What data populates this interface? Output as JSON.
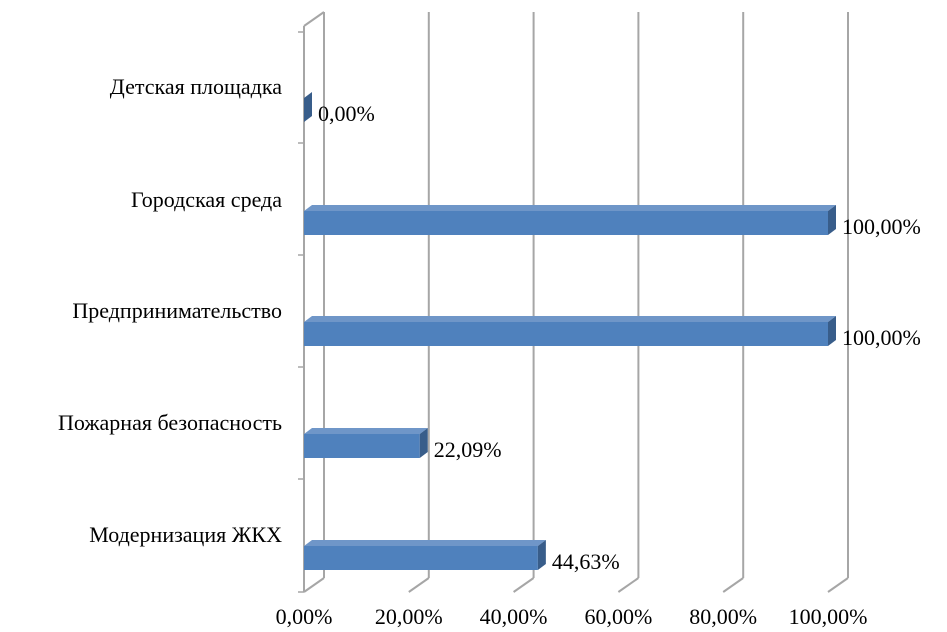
{
  "chart_data": {
    "type": "bar",
    "orientation": "horizontal",
    "style": "3d",
    "categories": [
      "Детская площадка",
      "Городская среда",
      "Предпринимательство",
      "Пожарная безопасность",
      "Модернизация ЖКХ"
    ],
    "values": [
      0.0,
      100.0,
      100.0,
      22.09,
      44.63
    ],
    "data_labels": [
      "0,00%",
      "100,00%",
      "100,00%",
      "22,09%",
      "44,63%"
    ],
    "x_ticks": [
      0,
      20,
      40,
      60,
      80,
      100
    ],
    "x_tick_labels": [
      "0,00%",
      "20,00%",
      "40,00%",
      "60,00%",
      "80,00%",
      "100,00%"
    ],
    "xlim": [
      0,
      100
    ],
    "grid": true,
    "legend": "none",
    "colors": {
      "bar_front": "#4F81BD",
      "bar_top": "#6F96C8",
      "bar_side": "#385D8A",
      "gridline": "#A6A6A6"
    }
  }
}
